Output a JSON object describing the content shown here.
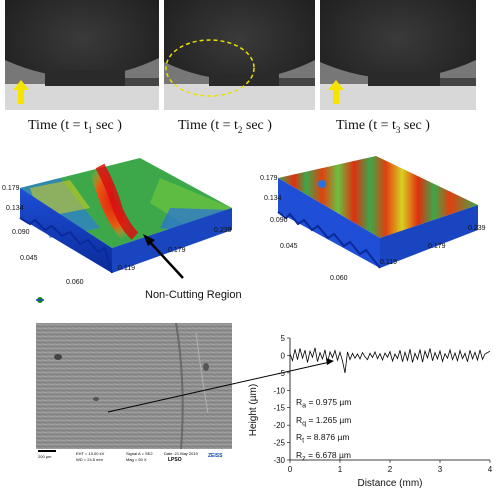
{
  "captions": {
    "t1_prefix": "Time (t = t",
    "t1_sub": "1",
    "t1_suffix": " sec )",
    "t2_prefix": "Time (t = t",
    "t2_sub": "2",
    "t2_suffix": " sec )",
    "t3_prefix": "Time (t = t",
    "t3_sub": "3",
    "t3_suffix": " sec )"
  },
  "surface_left": {
    "y_ticks": [
      "0.179",
      "0.134",
      "0.090",
      "0.045"
    ],
    "x_ticks": [
      "0.060",
      "0.119",
      "0.179",
      "0.239"
    ],
    "annotation": "Non-Cutting Region"
  },
  "surface_right": {
    "y_ticks": [
      "0.179",
      "0.134",
      "0.090",
      "0.045"
    ],
    "x_ticks": [
      "0.060",
      "0.119",
      "0.179",
      "0.239"
    ]
  },
  "sem": {
    "scale": "200 µm",
    "info1": "EHT = 10.00 kV",
    "info2": "WD = 24.5 mm",
    "info3": "Signal A = SE2",
    "info4": "Mag = 50 X",
    "info5": "Date :21 May 2019",
    "info6": "LPSO",
    "brand": "ZEISS"
  },
  "colors": {
    "arrow": "#f5e400",
    "dashed": "#e8e000"
  },
  "chart_data": {
    "type": "line",
    "xlabel": "Distance (mm)",
    "ylabel": "Height (µm)",
    "xlim": [
      0,
      4
    ],
    "ylim": [
      -30,
      5
    ],
    "x_ticks": [
      "0",
      "1",
      "2",
      "3",
      "4"
    ],
    "y_ticks": [
      "5",
      "0",
      "-5",
      "-10",
      "-15",
      "-20",
      "-25",
      "-30"
    ],
    "roughness": [
      {
        "label": "R",
        "sub": "a",
        "value": "= 0.975 µm"
      },
      {
        "label": "R",
        "sub": "q",
        "value": "= 1.265 µm"
      },
      {
        "label": "R",
        "sub": "t",
        "value": "= 8.876 µm"
      },
      {
        "label": "R",
        "sub": "z",
        "value": "= 6.678 µm"
      }
    ],
    "x": [
      0.0,
      0.05,
      0.1,
      0.15,
      0.2,
      0.25,
      0.3,
      0.35,
      0.4,
      0.45,
      0.5,
      0.55,
      0.6,
      0.65,
      0.7,
      0.75,
      0.8,
      0.85,
      0.9,
      0.95,
      1.0,
      1.05,
      1.1,
      1.15,
      1.2,
      1.25,
      1.3,
      1.35,
      1.4,
      1.45,
      1.5,
      1.55,
      1.6,
      1.65,
      1.7,
      1.75,
      1.8,
      1.85,
      1.9,
      1.95,
      2.0,
      2.05,
      2.1,
      2.15,
      2.2,
      2.25,
      2.3,
      2.35,
      2.4,
      2.45,
      2.5,
      2.55,
      2.6,
      2.65,
      2.7,
      2.75,
      2.8,
      2.85,
      2.9,
      2.95,
      3.0,
      3.05,
      3.1,
      3.15,
      3.2,
      3.25,
      3.3,
      3.35,
      3.4,
      3.45,
      3.5,
      3.55,
      3.6,
      3.65,
      3.7,
      3.75,
      3.8,
      3.85,
      3.9,
      3.95,
      4.0
    ],
    "y": [
      0.5,
      -1.5,
      1.8,
      -1.2,
      2.0,
      -0.8,
      1.5,
      -2.0,
      1.2,
      -0.5,
      2.2,
      -1.8,
      0.8,
      -1.0,
      1.6,
      -2.2,
      1.0,
      -0.6,
      1.4,
      -1.4,
      0.9,
      -1.6,
      -5.0,
      1.0,
      -1.2,
      0.6,
      -0.8,
      0.4,
      -1.0,
      0.8,
      -0.4,
      -1.2,
      0.6,
      -0.6,
      1.0,
      -0.9,
      0.5,
      -1.3,
      0.7,
      -0.5,
      1.1,
      -1.6,
      0.4,
      -0.9,
      1.5,
      -1.8,
      0.9,
      -1.4,
      1.8,
      -2.0,
      0.6,
      -1.1,
      1.7,
      -1.9,
      1.2,
      -0.7,
      2.0,
      -1.5,
      0.8,
      -1.0,
      1.3,
      -1.7,
      0.5,
      -0.8,
      1.6,
      -1.2,
      0.7,
      -1.5,
      1.4,
      -0.9,
      0.6,
      -1.8,
      1.5,
      -1.0,
      0.9,
      -1.3,
      1.6,
      -1.1,
      0.4,
      0.8,
      1.2
    ]
  }
}
